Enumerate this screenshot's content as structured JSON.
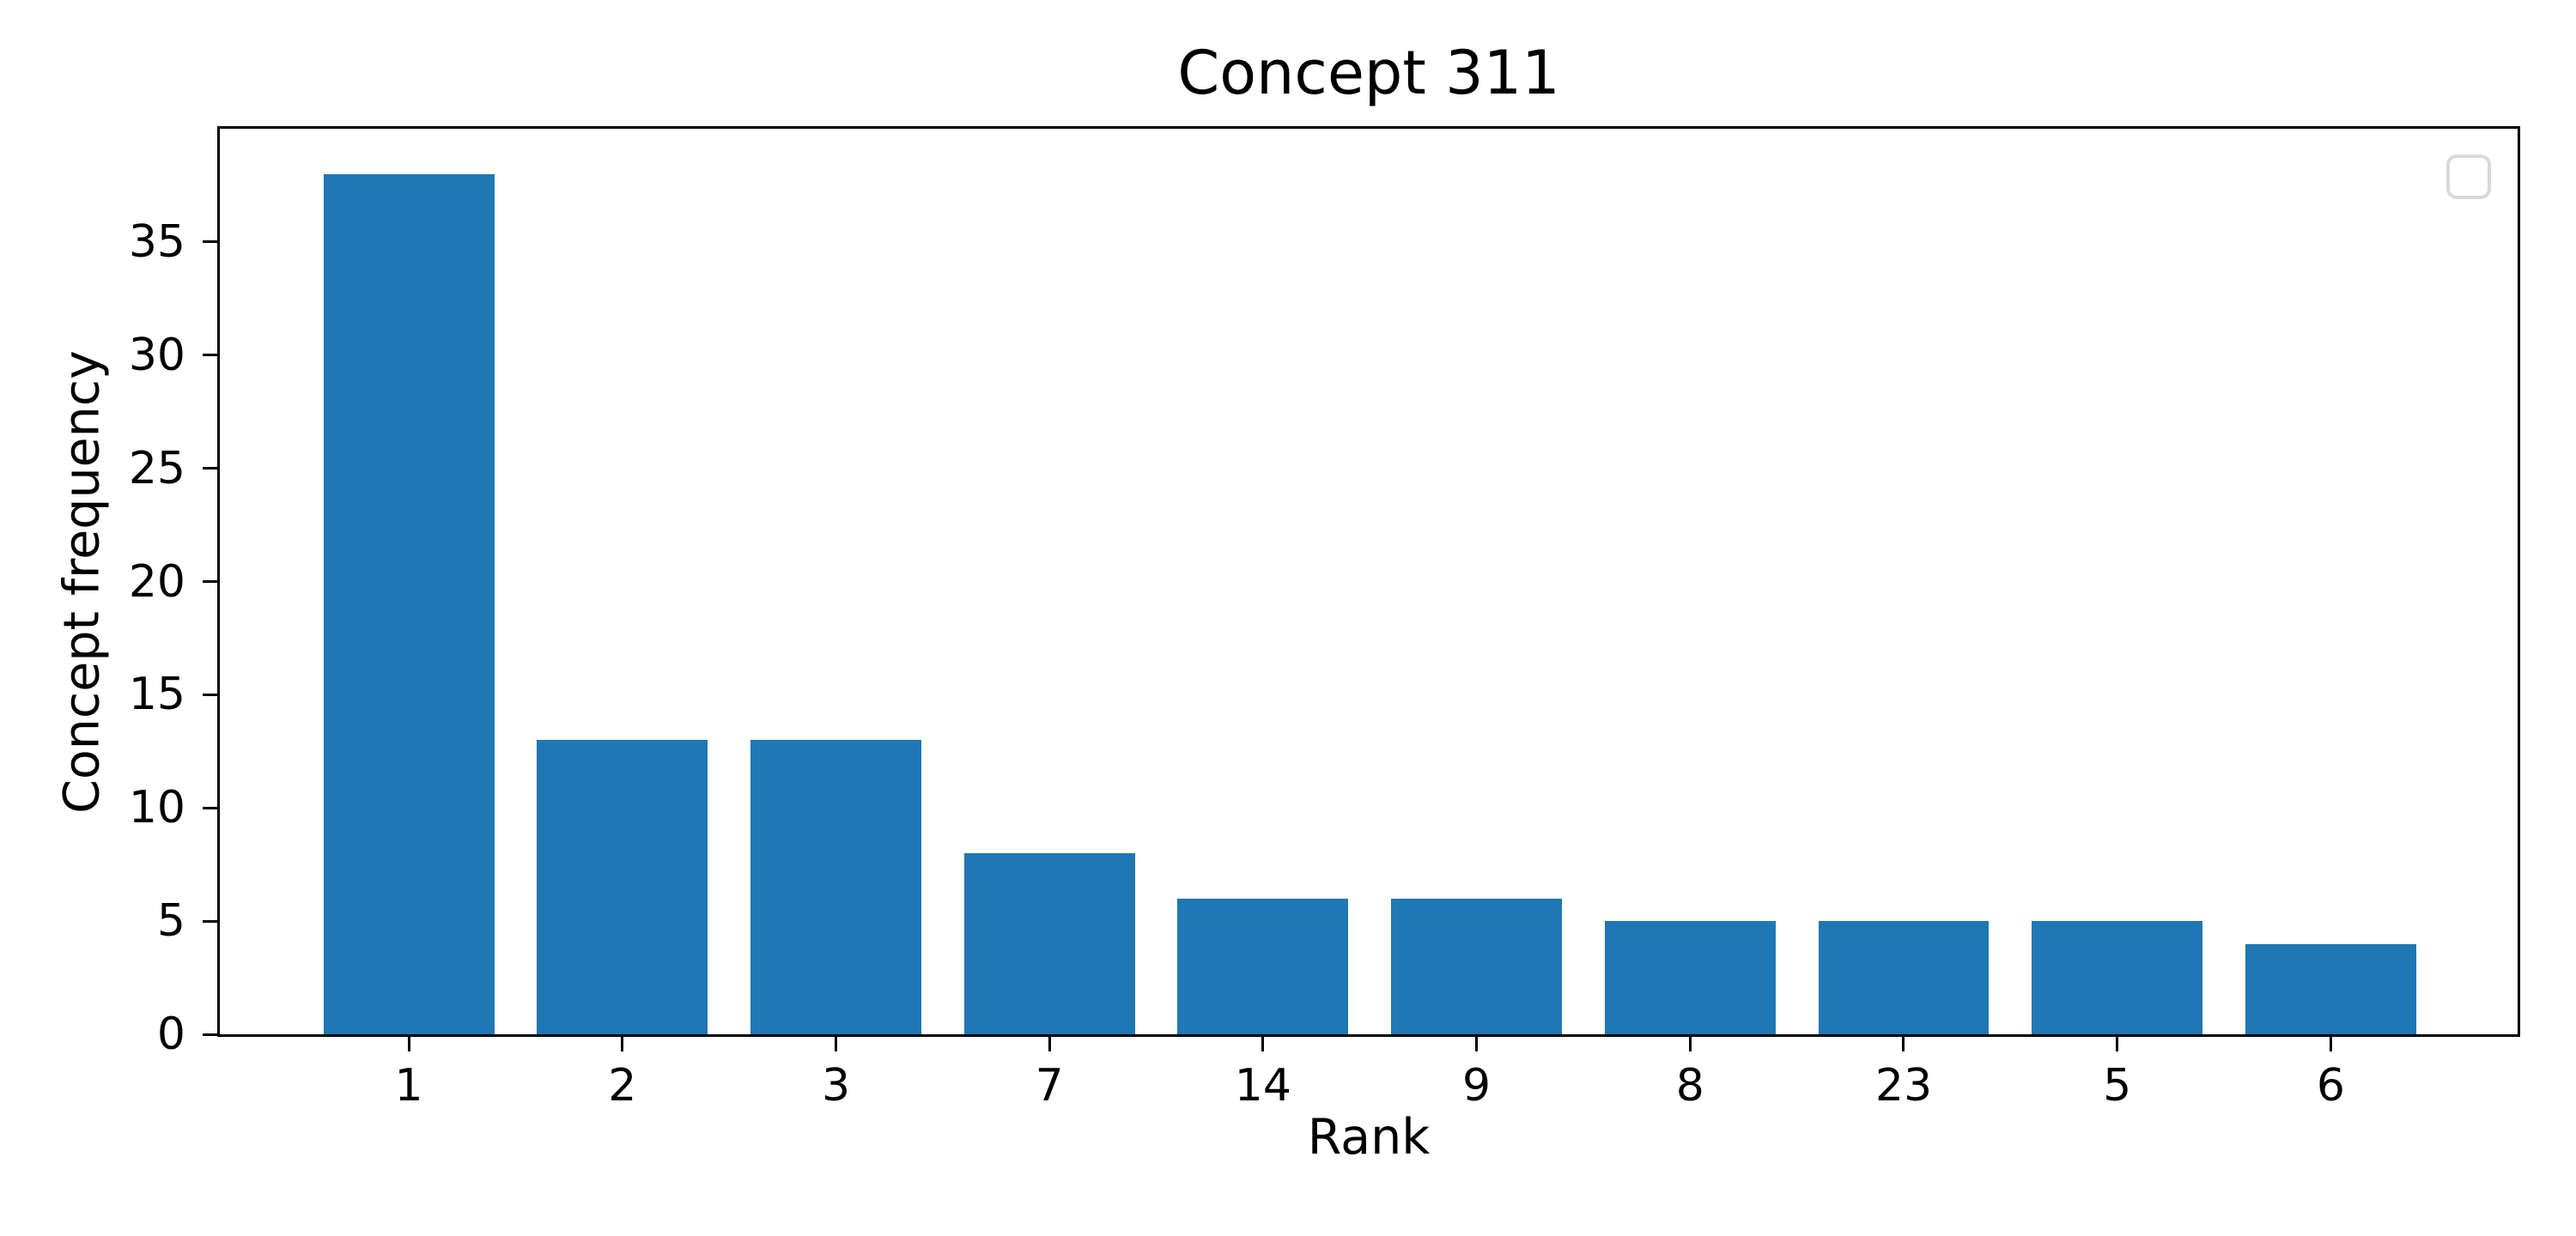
{
  "chart_data": {
    "type": "bar",
    "title": "Concept 311",
    "xlabel": "Rank",
    "ylabel": "Concept frequency",
    "categories": [
      "1",
      "2",
      "3",
      "7",
      "14",
      "9",
      "8",
      "23",
      "5",
      "6"
    ],
    "values": [
      38,
      13,
      13,
      8,
      6,
      6,
      5,
      5,
      5,
      4
    ],
    "yticks": [
      0,
      5,
      10,
      15,
      20,
      25,
      30,
      35
    ],
    "ylim": [
      0,
      40
    ],
    "grid": false,
    "legend": {
      "visible": true,
      "entries": [],
      "position": "upper right"
    },
    "colors": {
      "bar": "#1f77b4",
      "axis": "#000000",
      "background": "#ffffff",
      "legend_border": "#d9d9d9"
    }
  }
}
